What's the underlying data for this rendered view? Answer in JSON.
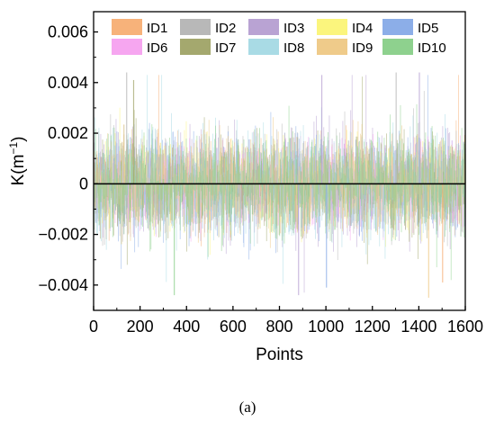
{
  "chart_data": {
    "type": "bar",
    "title": "",
    "xlabel": "Points",
    "ylabel_main": "K(m",
    "ylabel_sup": "−1",
    "ylabel_close": ")",
    "xlim": [
      0,
      1600
    ],
    "ylim": [
      -0.005,
      0.0068
    ],
    "x_ticks": [
      0,
      200,
      400,
      600,
      800,
      1000,
      1200,
      1400,
      1600
    ],
    "x_tick_labels": [
      "0",
      "200",
      "400",
      "600",
      "800",
      "1000",
      "1200",
      "1400",
      "1600"
    ],
    "y_ticks": [
      -0.004,
      -0.002,
      0,
      0.002,
      0.004,
      0.006
    ],
    "y_tick_labels": [
      "−0.004",
      "−0.002",
      "0",
      "0.002",
      "0.004",
      "0.006"
    ],
    "grid": false,
    "legend_position": "top",
    "legend_columns": 5,
    "zero_line": 0,
    "series": [
      {
        "name": "ID1",
        "color": "#f7b27a"
      },
      {
        "name": "ID2",
        "color": "#b8b8b8"
      },
      {
        "name": "ID3",
        "color": "#b9a3d3"
      },
      {
        "name": "ID4",
        "color": "#fbf57d"
      },
      {
        "name": "ID5",
        "color": "#8caee8"
      },
      {
        "name": "ID6",
        "color": "#f6a6f0"
      },
      {
        "name": "ID7",
        "color": "#a4a86e"
      },
      {
        "name": "ID8",
        "color": "#a9dbe5"
      },
      {
        "name": "ID9",
        "color": "#efcb8a"
      },
      {
        "name": "ID10",
        "color": "#8ed18e"
      }
    ],
    "peak_values": [
      {
        "series": "ID2",
        "x": 140,
        "y": 0.0044
      },
      {
        "series": "ID7",
        "x": 170,
        "y": 0.0041
      },
      {
        "series": "ID3",
        "x": 980,
        "y": 0.0043
      },
      {
        "series": "ID2",
        "x": 1300,
        "y": 0.0044
      },
      {
        "series": "ID3",
        "x": 1400,
        "y": 0.0044
      },
      {
        "series": "ID10",
        "x": 345,
        "y": -0.0044
      },
      {
        "series": "ID3",
        "x": 880,
        "y": -0.0044
      },
      {
        "series": "ID9",
        "x": 1440,
        "y": -0.0045
      },
      {
        "series": "ID5",
        "x": 1000,
        "y": -0.0041
      },
      {
        "series": "ID1",
        "x": 1500,
        "y": -0.0039
      }
    ]
  },
  "caption": "(a)"
}
